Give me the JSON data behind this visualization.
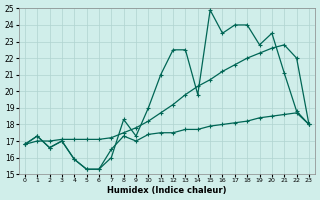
{
  "xlabel": "Humidex (Indice chaleur)",
  "bg_color": "#d0eeea",
  "grid_color": "#b0d4d0",
  "line_color": "#006655",
  "xlim_min": -0.5,
  "xlim_max": 23.5,
  "ylim_min": 15,
  "ylim_max": 25,
  "xticks": [
    0,
    1,
    2,
    3,
    4,
    5,
    6,
    7,
    8,
    9,
    10,
    11,
    12,
    13,
    14,
    15,
    16,
    17,
    18,
    19,
    20,
    21,
    22,
    23
  ],
  "yticks": [
    15,
    16,
    17,
    18,
    19,
    20,
    21,
    22,
    23,
    24,
    25
  ],
  "line1_x": [
    0,
    1,
    2,
    3,
    4,
    5,
    6,
    7,
    8,
    9,
    10,
    11,
    12,
    13,
    14,
    15,
    16,
    17,
    18,
    19,
    20,
    21,
    22,
    23
  ],
  "line1_y": [
    16.8,
    17.3,
    16.6,
    17.0,
    15.9,
    15.3,
    15.3,
    16.0,
    18.3,
    17.3,
    19.0,
    21.0,
    22.5,
    22.5,
    19.8,
    24.9,
    23.5,
    24.0,
    24.0,
    22.8,
    23.5,
    21.1,
    18.8,
    18.0
  ],
  "line2_x": [
    0,
    1,
    2,
    3,
    4,
    5,
    6,
    7,
    8,
    9,
    10,
    11,
    12,
    13,
    14,
    15,
    16,
    17,
    18,
    19,
    20,
    21,
    22,
    23
  ],
  "line2_y": [
    16.8,
    17.3,
    16.6,
    17.0,
    15.9,
    15.3,
    15.3,
    16.5,
    17.3,
    17.0,
    17.4,
    17.5,
    17.5,
    17.7,
    17.7,
    17.9,
    18.0,
    18.1,
    18.2,
    18.4,
    18.5,
    18.6,
    18.7,
    18.0
  ],
  "line3_x": [
    0,
    1,
    2,
    3,
    4,
    5,
    6,
    7,
    8,
    9,
    10,
    11,
    12,
    13,
    14,
    15,
    16,
    17,
    18,
    19,
    20,
    21,
    22,
    23
  ],
  "line3_y": [
    16.8,
    17.0,
    17.0,
    17.1,
    17.1,
    17.1,
    17.1,
    17.2,
    17.5,
    17.8,
    18.2,
    18.7,
    19.2,
    19.8,
    20.3,
    20.7,
    21.2,
    21.6,
    22.0,
    22.3,
    22.6,
    22.8,
    22.0,
    18.0
  ]
}
